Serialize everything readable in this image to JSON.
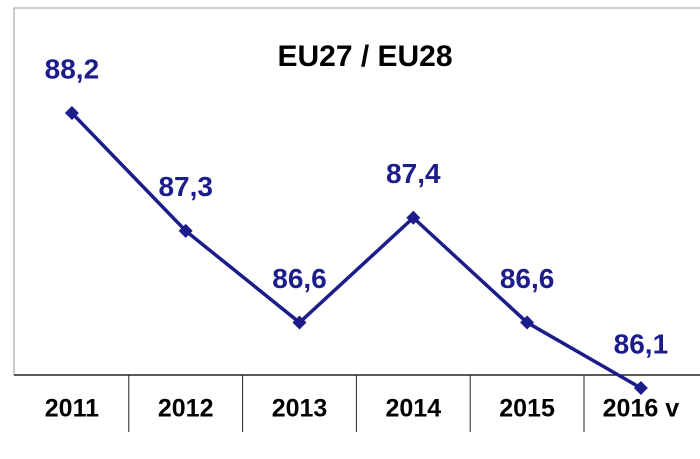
{
  "chart_data": {
    "type": "line",
    "title": "EU27 / EU28",
    "categories": [
      "2011",
      "2012",
      "2013",
      "2014",
      "2015",
      "2016 v"
    ],
    "values": [
      88.2,
      87.3,
      86.6,
      87.4,
      86.6,
      86.1
    ],
    "value_labels": [
      "88,2",
      "87,3",
      "86,6",
      "87,4",
      "86,6",
      "86,1"
    ],
    "color": "#1c1c8a"
  }
}
